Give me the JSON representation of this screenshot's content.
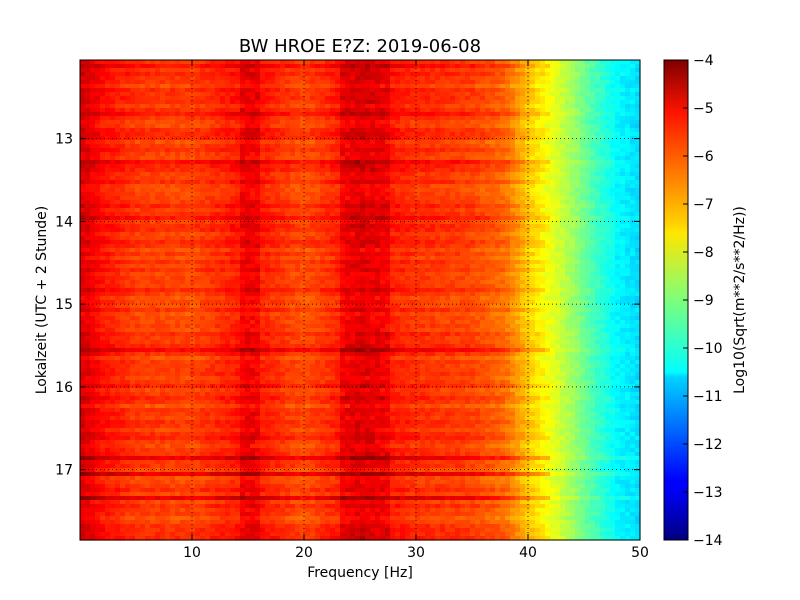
{
  "chart_data": {
    "type": "heatmap",
    "title": "BW HROE E?Z: 2019-06-08",
    "xlabel": "Frequency [Hz]",
    "ylabel": "Lokalzeit (UTC + 2 Stunde)",
    "colorbar_label": "Log10(Sqrt(m**2/s**2/Hz))",
    "colormap": "jet",
    "xlim": [
      0,
      50
    ],
    "ylim": [
      12.05,
      17.85
    ],
    "y_inverted": true,
    "clim": [
      -14,
      -4
    ],
    "grid": true,
    "x_ticks": [
      {
        "value": 10,
        "label": "10"
      },
      {
        "value": 20,
        "label": "20"
      },
      {
        "value": 30,
        "label": "30"
      },
      {
        "value": 40,
        "label": "40"
      },
      {
        "value": 50,
        "label": "50"
      }
    ],
    "y_ticks": [
      {
        "value": 13,
        "label": "13"
      },
      {
        "value": 14,
        "label": "14"
      },
      {
        "value": 15,
        "label": "15"
      },
      {
        "value": 16,
        "label": "16"
      },
      {
        "value": 17,
        "label": "17"
      }
    ],
    "colorbar_ticks": [
      {
        "value": -4,
        "label": "−4"
      },
      {
        "value": -5,
        "label": "−5"
      },
      {
        "value": -6,
        "label": "−6"
      },
      {
        "value": -7,
        "label": "−7"
      },
      {
        "value": -8,
        "label": "−8"
      },
      {
        "value": -9,
        "label": "−9"
      },
      {
        "value": -10,
        "label": "−10"
      },
      {
        "value": -11,
        "label": "−11"
      },
      {
        "value": -12,
        "label": "−12"
      },
      {
        "value": -13,
        "label": "−13"
      },
      {
        "value": -14,
        "label": "−14"
      }
    ],
    "frequency_profile": {
      "x": [
        0,
        1,
        2,
        5,
        10,
        14,
        16,
        20,
        25,
        30,
        35,
        38,
        40,
        42,
        44,
        46,
        48,
        49.5,
        50
      ],
      "y": [
        -4.9,
        -5.1,
        -5.4,
        -5.8,
        -5.9,
        -5.5,
        -5.5,
        -6.0,
        -5.3,
        -5.7,
        -5.9,
        -6.3,
        -7.2,
        -7.9,
        -8.7,
        -9.6,
        -10.3,
        -10.5,
        -10.6
      ]
    },
    "highlight_rows": [
      12.13,
      12.68,
      13.28,
      13.95,
      15.55,
      16.85,
      17.05,
      17.33
    ],
    "enhanced_bands": [
      {
        "x0": 14.5,
        "x1": 16.2,
        "offset": 0.35
      },
      {
        "x0": 23.0,
        "x1": 27.5,
        "offset": 0.35
      }
    ]
  }
}
